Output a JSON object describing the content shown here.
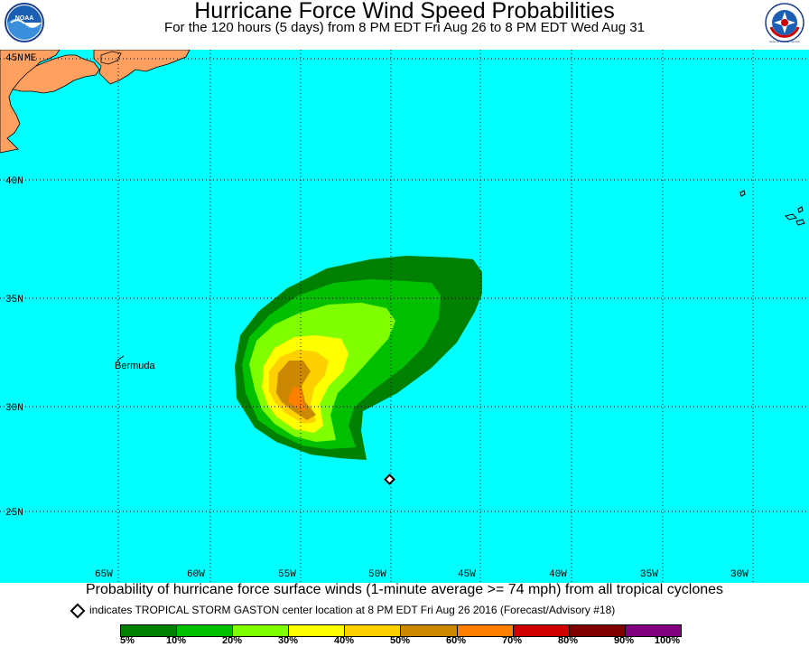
{
  "header": {
    "title": "Hurricane Force Wind Speed Probabilities",
    "subtitle": "For the 120 hours (5 days) from 8 PM EDT Fri Aug 26 to 8 PM EDT Wed Aug 31"
  },
  "logos": {
    "left": "NOAA",
    "right": "National Weather Service"
  },
  "map": {
    "lat_labels": [
      "45N",
      "40N",
      "35N",
      "30N",
      "25N"
    ],
    "lon_labels": [
      "65W",
      "60W",
      "55W",
      "50W",
      "45W",
      "40W",
      "35W",
      "30W"
    ],
    "me_label": "ME",
    "place_label": "Bermuda",
    "ocean_color": "#00ffff",
    "land_color": "#ffa060"
  },
  "caption": "Probability of hurricane force surface winds (1-minute average >= 74 mph) from all tropical cyclones",
  "note": "indicates TROPICAL STORM GASTON center location at 8 PM EDT Fri Aug 26 2016 (Forecast/Advisory #18)",
  "legend": {
    "colors": [
      "#008000",
      "#00c000",
      "#80ff00",
      "#ffff00",
      "#ffd000",
      "#cc8800",
      "#ff8000",
      "#d00000",
      "#800000",
      "#800080"
    ],
    "labels": [
      "5%",
      "10%",
      "20%",
      "30%",
      "40%",
      "50%",
      "60%",
      "70%",
      "80%",
      "90%",
      "100%"
    ]
  }
}
